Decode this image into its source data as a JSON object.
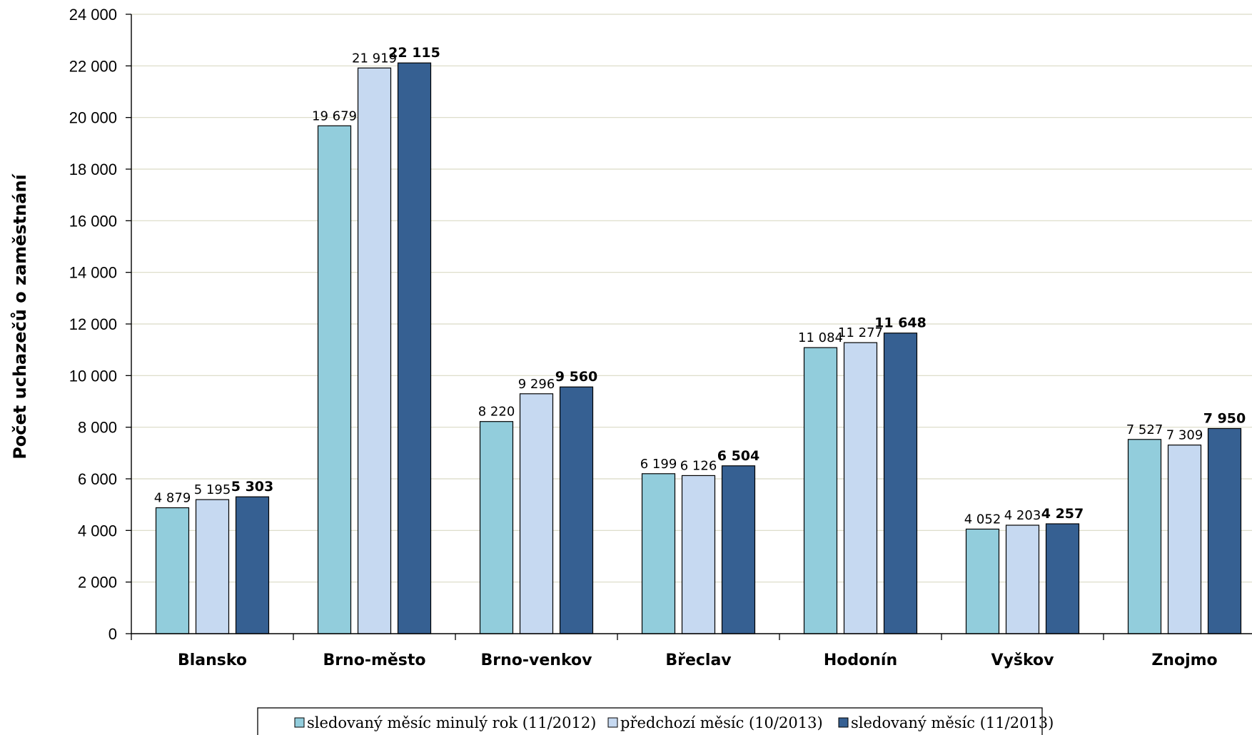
{
  "chart_data": {
    "type": "bar",
    "ylabel": "Počet uchazečů o zaměstnání",
    "ylim": [
      0,
      24000
    ],
    "ytick_step": 2000,
    "ytick_labels": [
      "0",
      "2 000",
      "4 000",
      "6 000",
      "8 000",
      "10 000",
      "12 000",
      "14 000",
      "16 000",
      "18 000",
      "20 000",
      "22 000",
      "24 000"
    ],
    "grid": true,
    "legend_position": "bottom",
    "categories": [
      "Blansko",
      "Brno-město",
      "Brno-venkov",
      "Břeclav",
      "Hodonín",
      "Vyškov",
      "Znojmo"
    ],
    "series": [
      {
        "name": "sledovaný měsíc minulý rok (11/2012)",
        "color": "#92CDDC",
        "bold_labels": false,
        "values": [
          4879,
          19679,
          8220,
          6199,
          11084,
          4052,
          7527
        ],
        "labels": [
          "4 879",
          "19 679",
          "8 220",
          "6 199",
          "11 084",
          "4 052",
          "7 527"
        ]
      },
      {
        "name": "předchozí měsíc (10/2013)",
        "color": "#C6D9F1",
        "bold_labels": false,
        "values": [
          5195,
          21919,
          9296,
          6126,
          11277,
          4203,
          7309
        ],
        "labels": [
          "5 195",
          "21 919",
          "9 296",
          "6 126",
          "11 277",
          "4 203",
          "7 309"
        ]
      },
      {
        "name": "sledovaný měsíc (11/2013)",
        "color": "#366092",
        "bold_labels": true,
        "values": [
          5303,
          22115,
          9560,
          6504,
          11648,
          4257,
          7950
        ],
        "labels": [
          "5 303",
          "22 115",
          "9 560",
          "6 504",
          "11 648",
          "4 257",
          "7 950"
        ]
      }
    ]
  }
}
